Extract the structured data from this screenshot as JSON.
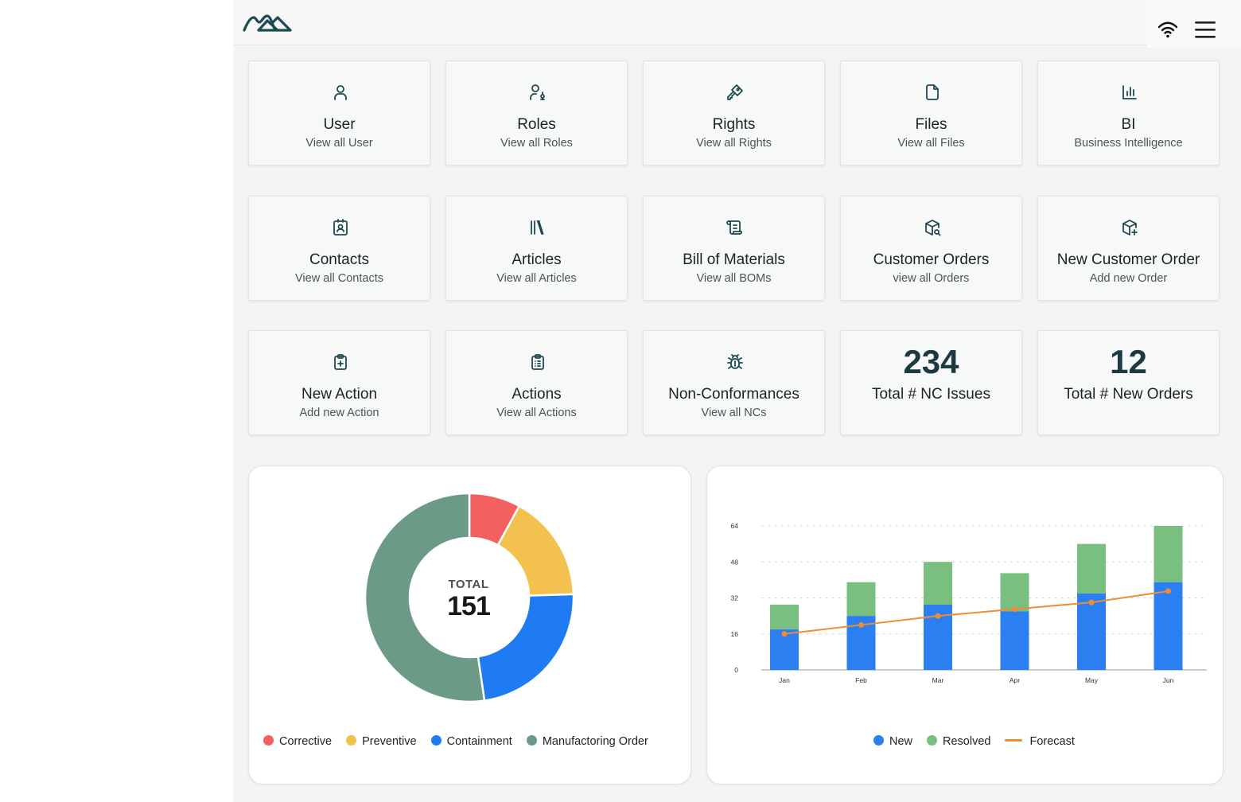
{
  "header": {
    "logo_icon": "mountain-logo-icon",
    "wifi_icon": "wifi-icon",
    "menu_icon": "hamburger-menu-icon"
  },
  "tiles": [
    {
      "title": "User",
      "subtitle": "View all User",
      "icon": "user-icon"
    },
    {
      "title": "Roles",
      "subtitle": "View all Roles",
      "icon": "user-key-icon"
    },
    {
      "title": "Rights",
      "subtitle": "View all Rights",
      "icon": "key-icon"
    },
    {
      "title": "Files",
      "subtitle": "View all Files",
      "icon": "file-icon"
    },
    {
      "title": "BI",
      "subtitle": "Business Intelligence",
      "icon": "bar-chart-icon"
    },
    {
      "title": "Contacts",
      "subtitle": "View all Contacts",
      "icon": "contact-badge-icon"
    },
    {
      "title": "Articles",
      "subtitle": "View all Articles",
      "icon": "library-books-icon"
    },
    {
      "title": "Bill of Materials",
      "subtitle": "View all BOMs",
      "icon": "scroll-list-icon"
    },
    {
      "title": "Customer Orders",
      "subtitle": "view all Orders",
      "icon": "package-search-icon"
    },
    {
      "title": "New Customer Order",
      "subtitle": "Add new Order",
      "icon": "package-plus-icon"
    },
    {
      "title": "New Action",
      "subtitle": "Add new Action",
      "icon": "clipboard-plus-icon"
    },
    {
      "title": "Actions",
      "subtitle": "View all Actions",
      "icon": "clipboard-list-icon"
    },
    {
      "title": "Non-Conformances",
      "subtitle": "View all NCs",
      "icon": "bug-icon"
    }
  ],
  "stats": [
    {
      "value": "234",
      "label": "Total # NC Issues"
    },
    {
      "value": "12",
      "label": "Total # New Orders"
    }
  ],
  "colors": {
    "corrective": "#f26060",
    "preventive": "#f2c14e",
    "containment": "#1f7bf2",
    "manufacturing": "#6b9b87",
    "new": "#2b7ff0",
    "resolved": "#78bf80",
    "forecast": "#f08c35"
  },
  "chart_data": [
    {
      "type": "pie",
      "center_label": "TOTAL",
      "center_value": "151",
      "categories": [
        "Corrective",
        "Preventive",
        "Containment",
        "Manufactoring Order"
      ],
      "values": [
        12,
        25,
        35,
        79
      ]
    },
    {
      "type": "bar",
      "categories": [
        "Jan",
        "Feb",
        "Mar",
        "Apr",
        "May",
        "Jun"
      ],
      "ylim": [
        0,
        64
      ],
      "yticks": [
        "0",
        "16",
        "32",
        "48",
        "64"
      ],
      "stacked": true,
      "series": [
        {
          "name": "New",
          "type": "bar",
          "values": [
            18,
            24,
            29,
            26,
            34,
            39
          ]
        },
        {
          "name": "Resolved",
          "type": "bar",
          "values": [
            11,
            15,
            19,
            17,
            22,
            25
          ]
        },
        {
          "name": "Forecast",
          "type": "line",
          "values": [
            16,
            20,
            24,
            27,
            30,
            35
          ]
        }
      ]
    }
  ]
}
